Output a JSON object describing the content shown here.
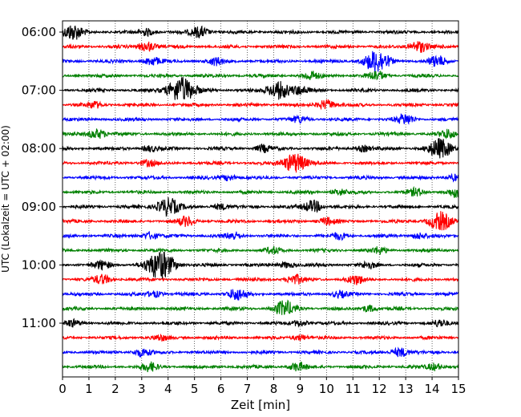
{
  "chart_data": {
    "type": "line",
    "title": "",
    "xlabel": "Zeit  [min]",
    "ylabel": "UTC (Lokalzeit = UTC + 02:00)",
    "xlim": [
      0,
      15
    ],
    "x_ticks": [
      0,
      1,
      2,
      3,
      4,
      5,
      6,
      7,
      8,
      9,
      10,
      11,
      12,
      13,
      14,
      15
    ],
    "x_tick_labels": [
      "0",
      "1",
      "2",
      "3",
      "4",
      "5",
      "6",
      "7",
      "8",
      "9",
      "10",
      "11",
      "12",
      "13",
      "14",
      "15"
    ],
    "y_tick_labels": [
      "06:00",
      "07:00",
      "08:00",
      "09:00",
      "10:00",
      "11:00"
    ],
    "y_tick_rows": [
      0,
      4,
      8,
      12,
      16,
      20
    ],
    "grid": {
      "x": "dotted",
      "y": false
    },
    "row_interval_minutes": 15,
    "row_colors": [
      "#000000",
      "#ff0000",
      "#0000ff",
      "#008000"
    ],
    "rows": [
      {
        "start": "06:00",
        "color": "#000000",
        "events": [
          {
            "t": 0.4,
            "amp": 0.75
          },
          {
            "t": 3.2,
            "amp": 0.35
          },
          {
            "t": 5.2,
            "amp": 0.55
          }
        ]
      },
      {
        "start": "06:15",
        "color": "#ff0000",
        "events": [
          {
            "t": 3.2,
            "amp": 0.5
          },
          {
            "t": 13.5,
            "amp": 0.6
          }
        ]
      },
      {
        "start": "06:30",
        "color": "#0000ff",
        "events": [
          {
            "t": 3.4,
            "amp": 0.4
          },
          {
            "t": 5.8,
            "amp": 0.35
          },
          {
            "t": 11.9,
            "amp": 1.1
          },
          {
            "t": 14.2,
            "amp": 0.5
          }
        ]
      },
      {
        "start": "06:45",
        "color": "#008000",
        "events": [
          {
            "t": 9.4,
            "amp": 0.4
          },
          {
            "t": 11.9,
            "amp": 0.45
          }
        ]
      },
      {
        "start": "07:00",
        "color": "#000000",
        "events": [
          {
            "t": 4.5,
            "amp": 1.3
          },
          {
            "t": 8.2,
            "amp": 0.9
          },
          {
            "t": 9.0,
            "amp": 0.4
          }
        ]
      },
      {
        "start": "07:15",
        "color": "#ff0000",
        "events": [
          {
            "t": 1.2,
            "amp": 0.3
          },
          {
            "t": 10.0,
            "amp": 0.5
          }
        ]
      },
      {
        "start": "07:30",
        "color": "#0000ff",
        "events": [
          {
            "t": 9.0,
            "amp": 0.3
          },
          {
            "t": 13.0,
            "amp": 0.5
          }
        ]
      },
      {
        "start": "07:45",
        "color": "#008000",
        "events": [
          {
            "t": 1.3,
            "amp": 0.5
          },
          {
            "t": 14.6,
            "amp": 0.4
          }
        ]
      },
      {
        "start": "08:00",
        "color": "#000000",
        "events": [
          {
            "t": 3.3,
            "amp": 0.3
          },
          {
            "t": 7.6,
            "amp": 0.35
          },
          {
            "t": 11.4,
            "amp": 0.3
          },
          {
            "t": 14.3,
            "amp": 0.95
          }
        ]
      },
      {
        "start": "08:15",
        "color": "#ff0000",
        "events": [
          {
            "t": 8.8,
            "amp": 1.0
          },
          {
            "t": 3.2,
            "amp": 0.3
          }
        ]
      },
      {
        "start": "08:30",
        "color": "#0000ff",
        "events": [
          {
            "t": 6.3,
            "amp": 0.3
          },
          {
            "t": 14.8,
            "amp": 0.3
          }
        ]
      },
      {
        "start": "08:45",
        "color": "#008000",
        "events": [
          {
            "t": 10.5,
            "amp": 0.3
          },
          {
            "t": 13.4,
            "amp": 0.35
          },
          {
            "t": 14.9,
            "amp": 0.45
          }
        ]
      },
      {
        "start": "09:00",
        "color": "#000000",
        "events": [
          {
            "t": 4.0,
            "amp": 0.9
          },
          {
            "t": 6.0,
            "amp": 0.3
          },
          {
            "t": 9.5,
            "amp": 0.6
          }
        ]
      },
      {
        "start": "09:15",
        "color": "#ff0000",
        "events": [
          {
            "t": 4.7,
            "amp": 0.45
          },
          {
            "t": 10.0,
            "amp": 0.35
          },
          {
            "t": 14.3,
            "amp": 0.9
          }
        ]
      },
      {
        "start": "09:30",
        "color": "#0000ff",
        "events": [
          {
            "t": 3.3,
            "amp": 0.35
          },
          {
            "t": 6.5,
            "amp": 0.35
          },
          {
            "t": 10.5,
            "amp": 0.3
          },
          {
            "t": 13.5,
            "amp": 0.3
          }
        ]
      },
      {
        "start": "09:45",
        "color": "#008000",
        "events": [
          {
            "t": 8.0,
            "amp": 0.3
          },
          {
            "t": 12.0,
            "amp": 0.3
          }
        ]
      },
      {
        "start": "10:00",
        "color": "#000000",
        "events": [
          {
            "t": 1.5,
            "amp": 0.4
          },
          {
            "t": 3.7,
            "amp": 1.4
          },
          {
            "t": 8.5,
            "amp": 0.3
          },
          {
            "t": 11.6,
            "amp": 0.3
          }
        ]
      },
      {
        "start": "10:15",
        "color": "#ff0000",
        "events": [
          {
            "t": 1.5,
            "amp": 0.45
          },
          {
            "t": 8.8,
            "amp": 0.45
          },
          {
            "t": 11.1,
            "amp": 0.45
          }
        ]
      },
      {
        "start": "10:30",
        "color": "#0000ff",
        "events": [
          {
            "t": 3.5,
            "amp": 0.3
          },
          {
            "t": 6.6,
            "amp": 0.55
          },
          {
            "t": 10.5,
            "amp": 0.3
          }
        ]
      },
      {
        "start": "10:45",
        "color": "#008000",
        "events": [
          {
            "t": 8.4,
            "amp": 0.75
          },
          {
            "t": 11.6,
            "amp": 0.35
          }
        ]
      },
      {
        "start": "11:00",
        "color": "#000000",
        "events": [
          {
            "t": 0.4,
            "amp": 0.3
          },
          {
            "t": 9.0,
            "amp": 0.3
          },
          {
            "t": 14.3,
            "amp": 0.3
          }
        ]
      },
      {
        "start": "11:15",
        "color": "#ff0000",
        "events": [
          {
            "t": 9.0,
            "amp": 0.3
          },
          {
            "t": 3.7,
            "amp": 0.25
          }
        ]
      },
      {
        "start": "11:30",
        "color": "#0000ff",
        "events": [
          {
            "t": 3.0,
            "amp": 0.4
          },
          {
            "t": 12.8,
            "amp": 0.45
          }
        ]
      },
      {
        "start": "11:45",
        "color": "#008000",
        "events": [
          {
            "t": 3.3,
            "amp": 0.4
          },
          {
            "t": 8.9,
            "amp": 0.4
          },
          {
            "t": 14.1,
            "amp": 0.35
          }
        ]
      }
    ]
  }
}
